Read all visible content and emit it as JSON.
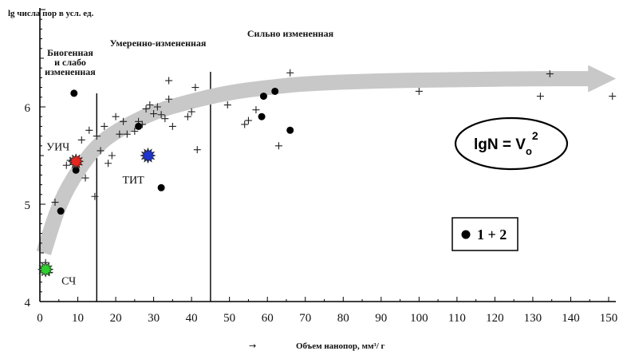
{
  "chart_data": {
    "type": "scatter",
    "title": "lg  числа пор в усл. ед.",
    "xlabel": "Объем нанопор, мм³/ г",
    "xlabel_arrow": "→",
    "xlim": [
      0,
      150
    ],
    "ylim": [
      4,
      7
    ],
    "x_ticks": [
      0,
      10,
      20,
      30,
      40,
      50,
      60,
      70,
      80,
      90,
      100,
      110,
      120,
      130,
      140,
      150
    ],
    "y_ticks": [
      4,
      5,
      6
    ],
    "zones": [
      {
        "label_lines": [
          "Биогенная",
          "и слабо",
          "измененная"
        ],
        "x_from": 0,
        "x_to": 15
      },
      {
        "label_lines": [
          "Умеренно-измененная"
        ],
        "x_from": 15,
        "x_to": 45
      },
      {
        "label_lines": [
          "Сильно измененная"
        ],
        "x_from": 45,
        "x_to": 150
      }
    ],
    "boundaries_x": [
      15,
      45
    ],
    "trend_curve": [
      [
        1,
        4.5
      ],
      [
        5,
        5.0
      ],
      [
        10,
        5.35
      ],
      [
        15,
        5.6
      ],
      [
        20,
        5.75
      ],
      [
        30,
        5.95
      ],
      [
        40,
        6.06
      ],
      [
        50,
        6.15
      ],
      [
        60,
        6.2
      ],
      [
        70,
        6.24
      ],
      [
        90,
        6.27
      ],
      [
        110,
        6.28
      ],
      [
        130,
        6.29
      ],
      [
        145,
        6.29
      ]
    ],
    "series": [
      {
        "name": "plus",
        "marker": "plus",
        "points": [
          [
            1.5,
            4.4
          ],
          [
            2.5,
            4.3
          ],
          [
            4,
            5.02
          ],
          [
            7,
            5.4
          ],
          [
            8,
            5.45
          ],
          [
            10,
            5.42
          ],
          [
            11,
            5.66
          ],
          [
            12,
            5.27
          ],
          [
            13,
            5.76
          ],
          [
            14.5,
            5.08
          ],
          [
            15,
            5.7
          ],
          [
            16,
            5.55
          ],
          [
            17,
            5.8
          ],
          [
            18,
            5.42
          ],
          [
            19,
            5.5
          ],
          [
            20,
            5.9
          ],
          [
            21,
            5.72
          ],
          [
            22,
            5.85
          ],
          [
            23,
            5.72
          ],
          [
            25,
            5.75
          ],
          [
            26,
            5.85
          ],
          [
            27,
            5.82
          ],
          [
            28,
            5.98
          ],
          [
            29,
            6.02
          ],
          [
            30,
            5.93
          ],
          [
            31,
            6.0
          ],
          [
            32,
            5.92
          ],
          [
            33,
            5.88
          ],
          [
            34,
            6.27
          ],
          [
            34,
            6.08
          ],
          [
            35,
            5.8
          ],
          [
            39,
            5.9
          ],
          [
            40,
            5.95
          ],
          [
            41,
            6.2
          ],
          [
            41.5,
            5.56
          ],
          [
            49.5,
            6.02
          ],
          [
            54,
            5.82
          ],
          [
            55,
            5.86
          ],
          [
            57,
            5.97
          ],
          [
            63,
            5.6
          ],
          [
            66,
            6.35
          ],
          [
            100,
            6.16
          ],
          [
            132,
            6.11
          ],
          [
            134.5,
            6.34
          ],
          [
            151,
            6.11
          ]
        ]
      },
      {
        "name": "1 + 2",
        "marker": "dot",
        "points": [
          [
            5.5,
            4.93
          ],
          [
            9,
            6.14
          ],
          [
            9.5,
            5.35
          ],
          [
            26,
            5.8
          ],
          [
            32,
            5.17
          ],
          [
            58.5,
            5.9
          ],
          [
            59,
            6.11
          ],
          [
            62,
            6.16
          ],
          [
            66,
            5.76
          ]
        ]
      }
    ],
    "highlighted": [
      {
        "label": "УИЧ",
        "x": 9.5,
        "y": 5.44,
        "color": "#e5261f"
      },
      {
        "label": "ТИТ",
        "x": 28.5,
        "y": 5.5,
        "color": "#1e34cc"
      },
      {
        "label": "СЧ",
        "x": 1.5,
        "y": 4.33,
        "color": "#2fcf2f"
      }
    ],
    "formula": {
      "base": "lgN = V",
      "sub": "o",
      "sup": "2"
    },
    "legend": {
      "label": "1 + 2",
      "position": "right"
    }
  }
}
